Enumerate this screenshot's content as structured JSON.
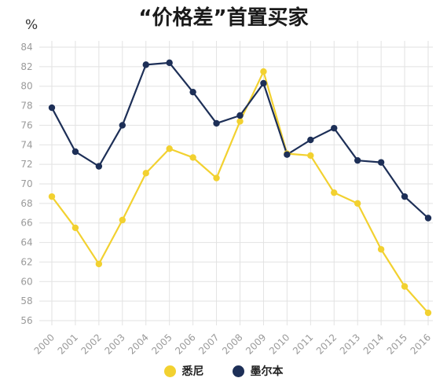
{
  "title": "“价格差”首置买家",
  "unit_label": "%",
  "legend": [
    {
      "label": "悉尼",
      "color": "#f2d130"
    },
    {
      "label": "墨尔本",
      "color": "#1d2f57"
    }
  ],
  "chart_data": {
    "type": "line",
    "title": "“价格差”首置买家",
    "xlabel": "",
    "ylabel": "%",
    "x": [
      "2000",
      "2001",
      "2002",
      "2003",
      "2004",
      "2005",
      "2006",
      "2007",
      "2008",
      "2009",
      "2010",
      "2011",
      "2012",
      "2013",
      "2014",
      "2015",
      "2016"
    ],
    "ylim": [
      56,
      84
    ],
    "yticks": [
      56,
      58,
      60,
      62,
      64,
      66,
      68,
      70,
      72,
      74,
      76,
      78,
      80,
      82,
      84
    ],
    "grid": true,
    "legend_position": "bottom",
    "series": [
      {
        "name": "悉尼",
        "color": "#f2d130",
        "values": [
          68.7,
          65.5,
          61.8,
          66.3,
          71.1,
          73.6,
          72.7,
          70.6,
          76.4,
          81.5,
          73.1,
          72.9,
          69.1,
          68.0,
          63.3,
          59.5,
          56.8
        ]
      },
      {
        "name": "墨尔本",
        "color": "#1d2f57",
        "values": [
          77.8,
          73.3,
          71.8,
          76.0,
          82.2,
          82.4,
          79.4,
          76.2,
          77.0,
          80.3,
          73.0,
          74.5,
          75.7,
          72.4,
          72.2,
          68.7,
          66.5
        ]
      }
    ]
  }
}
